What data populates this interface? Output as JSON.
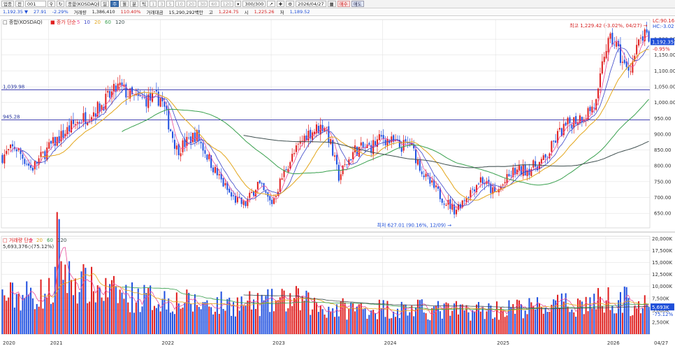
{
  "toolbar": {
    "market": "업종",
    "item": "전",
    "code": "001",
    "search_icon": "search-icon",
    "name": "종합(KOSDAQ)",
    "periods": [
      "일",
      "주",
      "월",
      "분",
      "틱"
    ],
    "active_period": "주",
    "minutes": [
      "1",
      "3",
      "5",
      "10",
      "20",
      "30",
      "60",
      "120"
    ],
    "count": "300/300",
    "date": "2026/04/27",
    "buy": "매수",
    "sell": "매도"
  },
  "quote": {
    "price": "1,192.35 ▼",
    "change": "27.91",
    "rate": "-2.29%",
    "vol_label": "거래량",
    "vol": "1,386,410",
    "vol_rate": "110.40%",
    "amount_label": "거래대금",
    "amount": "15,290,292백만",
    "high_label": "고",
    "high": "1,224.75",
    "low_label": "저",
    "low": "1,189.52",
    "open_label": "시",
    "open": "1,225.26"
  },
  "colors": {
    "up": "#e02020",
    "down": "#2050e0",
    "ma5": "#ea4d9b",
    "ma10": "#3a44c8",
    "ma20": "#e3a61b",
    "ma60": "#39a04e",
    "ma120": "#3f4f4f",
    "hline": "#2a2aa8",
    "grid": "#dedede"
  },
  "chart_data": [
    {
      "type": "candlestick",
      "title": "종합(KOSDAQ)",
      "legend": [
        {
          "name": "종가 단순",
          "color": "#e02020"
        },
        {
          "name": "5",
          "color": "#ea4d9b"
        },
        {
          "name": "10",
          "color": "#3a44c8"
        },
        {
          "name": "20",
          "color": "#e3a61b"
        },
        {
          "name": "60",
          "color": "#39a04e"
        },
        {
          "name": "120",
          "color": "#3f4f4f"
        }
      ],
      "y_range": [
        604,
        1262
      ],
      "y_ticks": [
        650,
        700,
        750,
        800,
        850,
        900,
        950,
        1000,
        1050,
        1100,
        1150,
        1200
      ],
      "y_tick_labels": [
        "650.00",
        "700.00",
        "750.00",
        "800.00",
        "850.00",
        "900.00",
        "950.00",
        "1,000.00",
        "1,050.00",
        "1,100.00",
        "1,150.00",
        "1,200.00"
      ],
      "x_labels": [
        "2020",
        "2021",
        "2022",
        "2023",
        "2024",
        "2025",
        "2026",
        "04/27"
      ],
      "x_label_fracs": [
        0.0,
        0.073,
        0.245,
        0.416,
        0.588,
        0.762,
        0.932,
        0.995
      ],
      "hlines": [
        {
          "value": 1039.98,
          "label": "1,039.98"
        },
        {
          "value": 945.28,
          "label": "945.28"
        }
      ],
      "annotations": {
        "high": "최고 1,229.42 (-3.02%, 04/27) →",
        "low": "최저 627.01 (90.16%, 12/09) →"
      },
      "current_price": "1,192.35",
      "right_labels": [
        "LC:90.16",
        "HC:-3.02"
      ],
      "right_pct": "-0.95%",
      "anchors_x": [
        0,
        0.02,
        0.045,
        0.073,
        0.11,
        0.15,
        0.18,
        0.205,
        0.23,
        0.245,
        0.27,
        0.3,
        0.33,
        0.355,
        0.375,
        0.395,
        0.416,
        0.44,
        0.47,
        0.5,
        0.52,
        0.545,
        0.57,
        0.588,
        0.615,
        0.63,
        0.655,
        0.68,
        0.7,
        0.72,
        0.74,
        0.762,
        0.79,
        0.815,
        0.84,
        0.86,
        0.88,
        0.9,
        0.92,
        0.932,
        0.945,
        0.955,
        0.965,
        0.975,
        0.99,
        1.0
      ],
      "anchors_y": [
        830,
        860,
        790,
        860,
        930,
        985,
        1050,
        1010,
        1010,
        1015,
        850,
        900,
        780,
        700,
        675,
        745,
        680,
        800,
        900,
        930,
        765,
        850,
        860,
        890,
        860,
        870,
        760,
        700,
        660,
        710,
        760,
        710,
        780,
        790,
        820,
        900,
        940,
        960,
        1000,
        1170,
        1200,
        1150,
        1100,
        1130,
        1210,
        1192
      ],
      "period": "weekly 2020 – 2026/04/27"
    },
    {
      "type": "bar",
      "title": "거래량",
      "legend": [
        {
          "name": "거래량 단순",
          "color": "#e02020"
        },
        {
          "name": "5",
          "color": "#ea4d9b"
        },
        {
          "name": "20",
          "color": "#e3a61b"
        },
        {
          "name": "60",
          "color": "#39a04e"
        },
        {
          "name": "120",
          "color": "#3f4f4f"
        }
      ],
      "value_label": "5,693,376◇(75.12%)",
      "y_range": [
        0,
        20500
      ],
      "y_ticks": [
        2500,
        5000,
        7500,
        10000,
        12500,
        15000,
        17500,
        20000
      ],
      "y_tick_labels": [
        "2,500K",
        "5,000K",
        "7,500K",
        "10,000K",
        "12,500K",
        "15,000K",
        "17,500K",
        "20,000K"
      ],
      "current_value": "5,693K",
      "current_pct": "-75.12%",
      "anchors_x": [
        0,
        0.05,
        0.08,
        0.085,
        0.1,
        0.15,
        0.2,
        0.25,
        0.3,
        0.4,
        0.45,
        0.5,
        0.6,
        0.7,
        0.8,
        0.9,
        0.95,
        1.0
      ],
      "anchors_y": [
        8000,
        8500,
        9000,
        20000,
        12000,
        9500,
        8000,
        7500,
        6500,
        6500,
        7500,
        5500,
        5500,
        5000,
        5500,
        6500,
        7800,
        5693
      ]
    }
  ]
}
